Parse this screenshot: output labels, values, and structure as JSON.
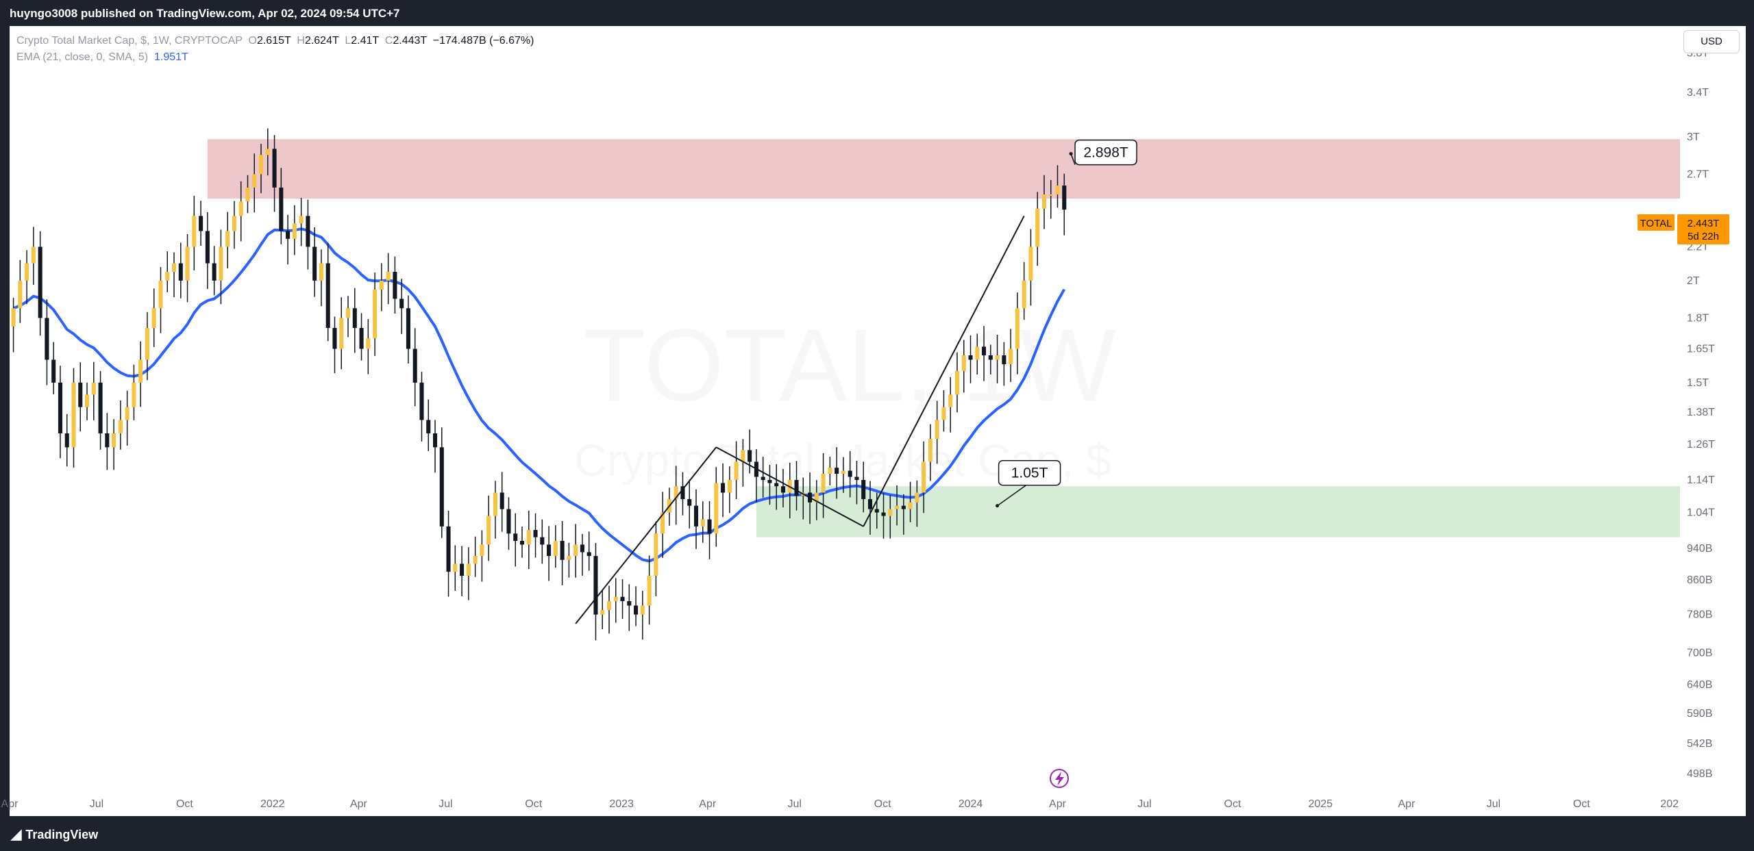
{
  "header": {
    "published": "huyngo3008 published on TradingView.com, Apr 02, 2024 09:54 UTC+7"
  },
  "legend": {
    "symbol": "Crypto Total Market Cap, $, 1W, CRYPTOCAP",
    "o_label": "O",
    "o_value": "2.615T",
    "h_label": "H",
    "h_value": "2.624T",
    "l_label": "L",
    "l_value": "2.41T",
    "c_label": "C",
    "c_value": "2.443T",
    "change": "−174.487B (−6.67%)",
    "ema_label": "EMA (21, close, 0, SMA, 5)",
    "ema_value": "1.951T"
  },
  "currency_button": "USD",
  "watermark": {
    "symbol": "TOTAL, 1W",
    "name": "Crypto Total Market Cap, $"
  },
  "price_tag": {
    "symbol": "TOTAL",
    "value": "2.443T",
    "countdown": "5d 22h",
    "color": "#ff9800"
  },
  "footer": {
    "logo_text": "TradingView"
  },
  "colors": {
    "up": "#f7c342",
    "down": "#131722",
    "ema": "#2962ff",
    "resistance_zone": "#e8b4b8",
    "support_zone": "#c8e6c9"
  },
  "chart_data": {
    "type": "candlestick",
    "timeframe": "1W",
    "y_scale": "log",
    "ylim": [
      470000000000.0,
      4100000000000.0
    ],
    "y_ticks": [
      {
        "value": 3800000000000.0,
        "label": "3.8T"
      },
      {
        "value": 3400000000000.0,
        "label": "3.4T"
      },
      {
        "value": 3000000000000.0,
        "label": "3T"
      },
      {
        "value": 2700000000000.0,
        "label": "2.7T"
      },
      {
        "value": 2200000000000.0,
        "label": "2.2T"
      },
      {
        "value": 2000000000000.0,
        "label": "2T"
      },
      {
        "value": 1800000000000.0,
        "label": "1.8T"
      },
      {
        "value": 1650000000000.0,
        "label": "1.65T"
      },
      {
        "value": 1500000000000.0,
        "label": "1.5T"
      },
      {
        "value": 1380000000000.0,
        "label": "1.38T"
      },
      {
        "value": 1260000000000.0,
        "label": "1.26T"
      },
      {
        "value": 1140000000000.0,
        "label": "1.14T"
      },
      {
        "value": 1040000000000.0,
        "label": "1.04T"
      },
      {
        "value": 940000000000.0,
        "label": "940B"
      },
      {
        "value": 860000000000.0,
        "label": "860B"
      },
      {
        "value": 780000000000.0,
        "label": "780B"
      },
      {
        "value": 700000000000.0,
        "label": "700B"
      },
      {
        "value": 640000000000.0,
        "label": "640B"
      },
      {
        "value": 590000000000.0,
        "label": "590B"
      },
      {
        "value": 542000000000.0,
        "label": "542B"
      },
      {
        "value": 498000000000.0,
        "label": "498B"
      }
    ],
    "x_ticks": [
      {
        "date": "2021-04-01",
        "label": "Apr"
      },
      {
        "date": "2021-07-01",
        "label": "Jul"
      },
      {
        "date": "2021-10-01",
        "label": "Oct"
      },
      {
        "date": "2022-01-01",
        "label": "2022"
      },
      {
        "date": "2022-04-01",
        "label": "Apr"
      },
      {
        "date": "2022-07-01",
        "label": "Jul"
      },
      {
        "date": "2022-10-01",
        "label": "Oct"
      },
      {
        "date": "2023-01-01",
        "label": "2023"
      },
      {
        "date": "2023-04-01",
        "label": "Apr"
      },
      {
        "date": "2023-07-01",
        "label": "Jul"
      },
      {
        "date": "2023-10-01",
        "label": "Oct"
      },
      {
        "date": "2024-01-01",
        "label": "2024"
      },
      {
        "date": "2024-04-01",
        "label": "Apr"
      },
      {
        "date": "2024-07-01",
        "label": "Jul"
      },
      {
        "date": "2024-10-01",
        "label": "Oct"
      },
      {
        "date": "2025-01-01",
        "label": "2025"
      },
      {
        "date": "2025-04-01",
        "label": "Apr"
      },
      {
        "date": "2025-07-01",
        "label": "Jul"
      },
      {
        "date": "2025-10-01",
        "label": "Oct"
      },
      {
        "date": "2026-01-01",
        "label": "202"
      }
    ],
    "x_range": [
      "2021-04-01",
      "2026-01-12"
    ],
    "weekly_closes_from": "2021-04-05",
    "weekly_closes": [
      1850000000000.0,
      2000000000000.0,
      2100000000000.0,
      2200000000000.0,
      1800000000000.0,
      1600000000000.0,
      1500000000000.0,
      1300000000000.0,
      1250000000000.0,
      1500000000000.0,
      1400000000000.0,
      1450000000000.0,
      1500000000000.0,
      1300000000000.0,
      1250000000000.0,
      1300000000000.0,
      1350000000000.0,
      1400000000000.0,
      1500000000000.0,
      1600000000000.0,
      1750000000000.0,
      1850000000000.0,
      2000000000000.0,
      2050000000000.0,
      2100000000000.0,
      2000000000000.0,
      2200000000000.0,
      2400000000000.0,
      2300000000000.0,
      2100000000000.0,
      2000000000000.0,
      2200000000000.0,
      2300000000000.0,
      2400000000000.0,
      2500000000000.0,
      2600000000000.0,
      2700000000000.0,
      2850000000000.0,
      2900000000000.0,
      2600000000000.0,
      2300000000000.0,
      2250000000000.0,
      2350000000000.0,
      2400000000000.0,
      2200000000000.0,
      2000000000000.0,
      2100000000000.0,
      1750000000000.0,
      1650000000000.0,
      1800000000000.0,
      1850000000000.0,
      1750000000000.0,
      1650000000000.0,
      1700000000000.0,
      1950000000000.0,
      2000000000000.0,
      2050000000000.0,
      1900000000000.0,
      1850000000000.0,
      1650000000000.0,
      1500000000000.0,
      1350000000000.0,
      1300000000000.0,
      1250000000000.0,
      1000000000000.0,
      880000000000.0,
      900000000000.0,
      870000000000.0,
      900000000000.0,
      920000000000.0,
      950000000000.0,
      1030000000000.0,
      1100000000000.0,
      1050000000000.0,
      980000000000.0,
      960000000000.0,
      950000000000.0,
      990000000000.0,
      970000000000.0,
      950000000000.0,
      920000000000.0,
      960000000000.0,
      910000000000.0,
      920000000000.0,
      950000000000.0,
      930000000000.0,
      920000000000.0,
      780000000000.0,
      790000000000.0,
      810000000000.0,
      820000000000.0,
      810000000000.0,
      800000000000.0,
      780000000000.0,
      800000000000.0,
      870000000000.0,
      980000000000.0,
      1040000000000.0,
      1080000000000.0,
      1120000000000.0,
      1080000000000.0,
      1060000000000.0,
      1000000000000.0,
      1020000000000.0,
      980000000000.0,
      1130000000000.0,
      1100000000000.0,
      1140000000000.0,
      1200000000000.0,
      1240000000000.0,
      1200000000000.0,
      1150000000000.0,
      1140000000000.0,
      1130000000000.0,
      1120000000000.0,
      1100000000000.0,
      1140000000000.0,
      1090000000000.0,
      1100000000000.0,
      1070000000000.0,
      1100000000000.0,
      1160000000000.0,
      1180000000000.0,
      1160000000000.0,
      1170000000000.0,
      1150000000000.0,
      1140000000000.0,
      1080000000000.0,
      1050000000000.0,
      1040000000000.0,
      1030000000000.0,
      1050000000000.0,
      1060000000000.0,
      1050000000000.0,
      1070000000000.0,
      1100000000000.0,
      1200000000000.0,
      1280000000000.0,
      1350000000000.0,
      1400000000000.0,
      1450000000000.0,
      1550000000000.0,
      1620000000000.0,
      1600000000000.0,
      1660000000000.0,
      1620000000000.0,
      1600000000000.0,
      1620000000000.0,
      1580000000000.0,
      1650000000000.0,
      1850000000000.0,
      2000000000000.0,
      2200000000000.0,
      2450000000000.0,
      2550000000000.0,
      2550000000000.0,
      2615000000000.0,
      2443000000000.0
    ],
    "ema": {
      "name": "EMA (21, close, 0, SMA, 5)",
      "period": 21,
      "last_value": 1951000000000.0
    },
    "zones": [
      {
        "kind": "resistance",
        "from": "2021-10-25",
        "to": "2026-01-12",
        "low": 2520000000000.0,
        "high": 2980000000000.0
      },
      {
        "kind": "support",
        "from": "2023-05-22",
        "to": "2026-01-12",
        "low": 970000000000.0,
        "high": 1120000000000.0
      }
    ],
    "trendlines": [
      {
        "from": [
          "2022-11-14",
          760000000000.0
        ],
        "to": [
          "2023-04-10",
          1250000000000.0
        ]
      },
      {
        "from": [
          "2023-04-10",
          1250000000000.0
        ],
        "to": [
          "2023-09-11",
          1000000000000.0
        ]
      },
      {
        "from": [
          "2023-09-11",
          1000000000000.0
        ],
        "to": [
          "2024-02-26",
          2400000000000.0
        ]
      }
    ],
    "callouts": [
      {
        "label": "2.898T",
        "anchor": [
          "2024-04-15",
          2860000000000.0
        ]
      },
      {
        "label": "1.05T",
        "anchor": [
          "2024-01-29",
          1060000000000.0
        ]
      }
    ],
    "last_price": 2443000000000.0
  }
}
